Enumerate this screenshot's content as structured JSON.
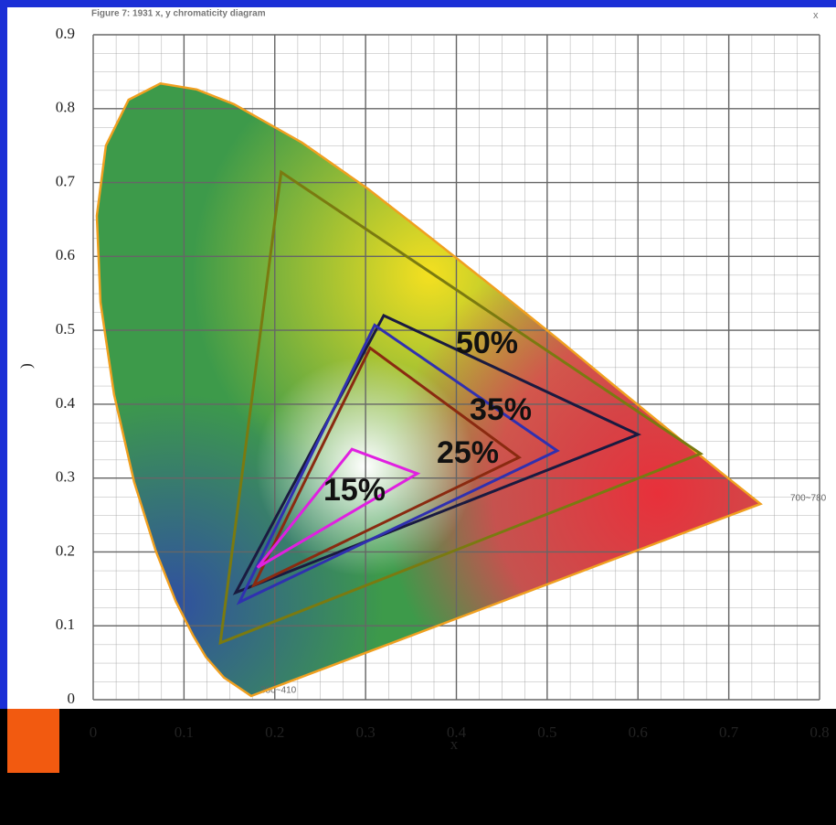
{
  "chart_data": {
    "type": "polygon",
    "title": "Figure 7: 1931 x, y chromaticity diagram",
    "close": "x",
    "xlabel": "x",
    "ylabel": ")",
    "xlim": [
      0,
      0.8
    ],
    "ylim": [
      0,
      0.9
    ],
    "xticks": [
      0,
      0.1,
      0.2,
      0.3,
      0.4,
      0.5,
      0.6,
      0.7,
      0.8
    ],
    "yticks": [
      0,
      0.1,
      0.2,
      0.3,
      0.4,
      0.5,
      0.6,
      0.7,
      0.8,
      0.9
    ],
    "grid": true,
    "annotations": [
      "700~780",
      "380~410"
    ],
    "locus": {
      "color": "#f0a020",
      "x": [
        0.174,
        0.144,
        0.124,
        0.11,
        0.091,
        0.069,
        0.045,
        0.023,
        0.008,
        0.004,
        0.014,
        0.039,
        0.074,
        0.114,
        0.155,
        0.23,
        0.302,
        0.373,
        0.444,
        0.513,
        0.575,
        0.627,
        0.691,
        0.735
      ],
      "y": [
        0.005,
        0.03,
        0.058,
        0.087,
        0.133,
        0.201,
        0.295,
        0.413,
        0.538,
        0.655,
        0.75,
        0.812,
        0.834,
        0.826,
        0.806,
        0.754,
        0.692,
        0.624,
        0.555,
        0.487,
        0.424,
        0.372,
        0.308,
        0.265
      ]
    },
    "series": [
      {
        "name": null,
        "color": "#7a7a10",
        "x": [
          0.207,
          0.14,
          0.669
        ],
        "y": [
          0.714,
          0.077,
          0.333
        ]
      },
      {
        "name": "50%",
        "color": "#1a1a40",
        "x": [
          0.32,
          0.6,
          0.157
        ],
        "y": [
          0.52,
          0.359,
          0.145
        ]
      },
      {
        "name": "35%",
        "color": "#3030b0",
        "x": [
          0.31,
          0.511,
          0.161
        ],
        "y": [
          0.507,
          0.337,
          0.132
        ]
      },
      {
        "name": "25%",
        "color": "#8a2a10",
        "x": [
          0.305,
          0.469,
          0.177
        ],
        "y": [
          0.476,
          0.328,
          0.155
        ]
      },
      {
        "name": "15%",
        "color": "#e020e0",
        "x": [
          0.285,
          0.357,
          0.181
        ],
        "y": [
          0.339,
          0.306,
          0.179
        ]
      }
    ]
  }
}
